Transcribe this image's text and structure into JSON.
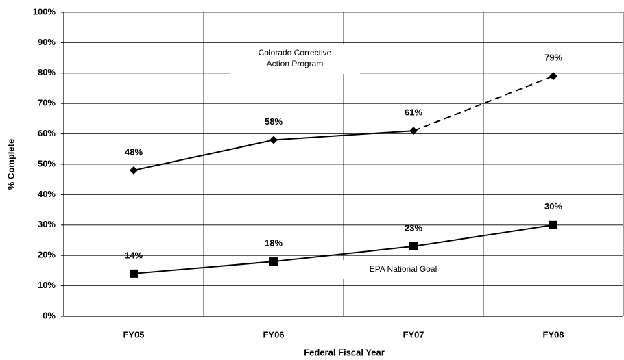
{
  "chart_data": {
    "type": "line",
    "x_label": "Federal Fiscal Year",
    "y_label": "% Complete",
    "categories": [
      "FY05",
      "FY06",
      "FY07",
      "FY08"
    ],
    "series": [
      {
        "color": "#000000",
        "marker": "diamond",
        "values": [
          48,
          58,
          61,
          79
        ],
        "value_labels": [
          "48%",
          "58%",
          "61%",
          "79%"
        ],
        "segment_styles": [
          "solid",
          "solid",
          "dashed"
        ]
      },
      {
        "color": "#000000",
        "marker": "square",
        "values": [
          14,
          18,
          23,
          30
        ],
        "value_labels": [
          "14%",
          "18%",
          "23%",
          "30%"
        ],
        "segment_styles": [
          "solid",
          "solid",
          "solid"
        ]
      }
    ],
    "annotations": [
      {
        "lines": [
          "Colorado Corrective",
          "Action Program"
        ]
      },
      {
        "lines": [
          "EPA National Goal"
        ]
      }
    ],
    "ylim": [
      0,
      100
    ],
    "yticks": [
      {
        "value": 0,
        "label": "0%"
      },
      {
        "value": 10,
        "label": "10%"
      },
      {
        "value": 20,
        "label": "20%"
      },
      {
        "value": 30,
        "label": "30%"
      },
      {
        "value": 40,
        "label": "40%"
      },
      {
        "value": 50,
        "label": "50%"
      },
      {
        "value": 60,
        "label": "60%"
      },
      {
        "value": 70,
        "label": "70%"
      },
      {
        "value": 80,
        "label": "80%"
      },
      {
        "value": 90,
        "label": "90%"
      },
      {
        "value": 100,
        "label": "100%"
      }
    ],
    "grid": true
  }
}
